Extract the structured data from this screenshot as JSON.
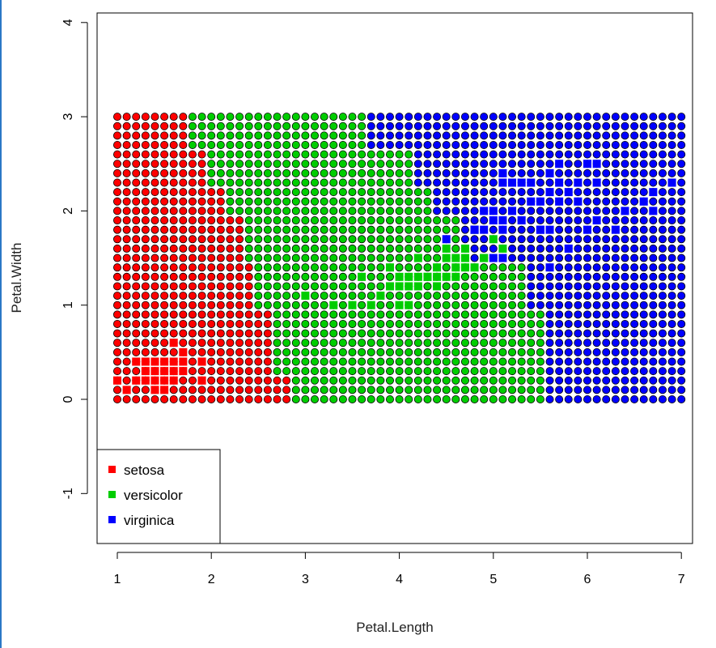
{
  "chart_data": {
    "type": "scatter",
    "title": "",
    "xlabel": "Petal.Length",
    "ylabel": "Petal.Width",
    "xlim": [
      1,
      7
    ],
    "ylim": [
      -1.5,
      4.2
    ],
    "xticks": [
      "1",
      "2",
      "3",
      "4",
      "5",
      "6",
      "7"
    ],
    "yticks": [
      "-1",
      "0",
      "1",
      "2",
      "3",
      "4"
    ],
    "grid": false,
    "legend_position": "bottom-left",
    "grid_points": {
      "x_start": 1,
      "x_end": 7,
      "x_step": 0.1,
      "y_start": 0,
      "y_end": 3,
      "y_step": 0.1,
      "marker": "filled-circle",
      "edge_color": "#000000"
    },
    "series": [
      {
        "name": "setosa",
        "color": "#ff0000"
      },
      {
        "name": "versicolor",
        "color": "#00cd00"
      },
      {
        "name": "virginica",
        "color": "#0000ff"
      }
    ],
    "decision_boundaries": [
      {
        "y_from": 0.0,
        "y_to": 0.3,
        "setosa_max_x": 2.8,
        "versicolor_max_x": 5.5
      },
      {
        "y_from": 0.3,
        "y_to": 1.0,
        "setosa_max_x": 2.6,
        "versicolor_max_x": 5.5
      },
      {
        "y_from": 1.0,
        "y_to": 1.5,
        "setosa_max_x": 2.4,
        "versicolor_max_x": 5.3
      },
      {
        "y_from": 1.5,
        "y_to": 2.0,
        "setosa_max_x": 2.3,
        "versicolor_max_x": 4.6
      },
      {
        "y_from": 2.0,
        "y_to": 2.3,
        "setosa_max_x": 2.1,
        "versicolor_max_x": 4.3
      },
      {
        "y_from": 2.3,
        "y_to": 2.7,
        "setosa_max_x": 1.9,
        "versicolor_max_x": 4.1
      },
      {
        "y_from": 2.7,
        "y_to": 3.01,
        "setosa_max_x": 1.7,
        "versicolor_max_x": 3.6
      }
    ],
    "training_squares": {
      "setosa": [
        [
          1.4,
          0.2
        ],
        [
          1.3,
          0.2
        ],
        [
          1.5,
          0.2
        ],
        [
          1.7,
          0.4
        ],
        [
          1.4,
          0.3
        ],
        [
          1.5,
          0.1
        ],
        [
          1.6,
          0.2
        ],
        [
          1.1,
          0.1
        ],
        [
          1.2,
          0.2
        ],
        [
          1.3,
          0.4
        ],
        [
          1.0,
          0.2
        ],
        [
          1.7,
          0.5
        ],
        [
          1.9,
          0.2
        ],
        [
          1.6,
          0.4
        ],
        [
          1.5,
          0.4
        ],
        [
          1.9,
          0.4
        ],
        [
          1.6,
          0.6
        ],
        [
          1.3,
          0.3
        ],
        [
          1.4,
          0.1
        ],
        [
          1.5,
          0.3
        ],
        [
          1.2,
          0.4
        ],
        [
          1.6,
          0.3
        ],
        [
          1.4,
          0.4
        ],
        [
          1.7,
          0.3
        ]
      ],
      "versicolor": [
        [
          4.7,
          1.4
        ],
        [
          4.5,
          1.5
        ],
        [
          4.9,
          1.5
        ],
        [
          4.0,
          1.3
        ],
        [
          4.6,
          1.5
        ],
        [
          4.7,
          1.6
        ],
        [
          3.3,
          1.0
        ],
        [
          4.6,
          1.3
        ],
        [
          3.9,
          1.4
        ],
        [
          3.5,
          1.0
        ],
        [
          4.2,
          1.5
        ],
        [
          4.0,
          1.0
        ],
        [
          3.6,
          1.3
        ],
        [
          4.4,
          1.4
        ],
        [
          4.5,
          1.3
        ],
        [
          4.1,
          1.0
        ],
        [
          4.8,
          1.8
        ],
        [
          4.9,
          1.5
        ],
        [
          4.3,
          1.3
        ],
        [
          5.0,
          1.7
        ],
        [
          3.8,
          1.1
        ],
        [
          3.7,
          1.0
        ],
        [
          3.9,
          1.2
        ],
        [
          5.1,
          1.6
        ],
        [
          4.4,
          1.3
        ],
        [
          4.1,
          1.3
        ],
        [
          3.0,
          1.1
        ],
        [
          4.2,
          1.3
        ],
        [
          4.3,
          1.3
        ],
        [
          4.0,
          1.2
        ],
        [
          4.4,
          1.2
        ],
        [
          4.8,
          1.4
        ],
        [
          4.5,
          1.6
        ],
        [
          4.7,
          1.5
        ],
        [
          4.6,
          1.4
        ],
        [
          4.1,
          1.2
        ],
        [
          4.2,
          1.2
        ]
      ],
      "virginica": [
        [
          6.0,
          2.5
        ],
        [
          5.1,
          1.9
        ],
        [
          5.9,
          2.1
        ],
        [
          5.6,
          1.8
        ],
        [
          5.8,
          2.2
        ],
        [
          6.6,
          2.1
        ],
        [
          4.5,
          1.7
        ],
        [
          6.3,
          1.8
        ],
        [
          6.1,
          2.5
        ],
        [
          5.3,
          1.9
        ],
        [
          5.5,
          2.1
        ],
        [
          5.0,
          2.0
        ],
        [
          5.1,
          2.4
        ],
        [
          5.3,
          2.3
        ],
        [
          5.5,
          1.8
        ],
        [
          6.7,
          2.2
        ],
        [
          6.9,
          2.3
        ],
        [
          5.0,
          1.5
        ],
        [
          5.7,
          2.3
        ],
        [
          4.9,
          2.0
        ],
        [
          6.7,
          2.0
        ],
        [
          4.9,
          1.8
        ],
        [
          5.7,
          2.1
        ],
        [
          6.0,
          1.8
        ],
        [
          4.8,
          1.8
        ],
        [
          5.8,
          1.6
        ],
        [
          6.1,
          1.9
        ],
        [
          6.4,
          2.0
        ],
        [
          5.6,
          2.2
        ],
        [
          5.1,
          1.5
        ],
        [
          5.6,
          1.4
        ],
        [
          6.1,
          2.3
        ],
        [
          5.6,
          2.4
        ],
        [
          5.5,
          1.8
        ],
        [
          4.8,
          1.8
        ],
        [
          5.4,
          2.1
        ],
        [
          5.6,
          2.4
        ],
        [
          5.1,
          2.3
        ],
        [
          5.9,
          2.3
        ],
        [
          5.7,
          2.5
        ],
        [
          5.2,
          2.3
        ],
        [
          5.0,
          1.9
        ],
        [
          5.2,
          2.0
        ],
        [
          5.4,
          2.3
        ],
        [
          5.1,
          1.8
        ]
      ]
    }
  }
}
